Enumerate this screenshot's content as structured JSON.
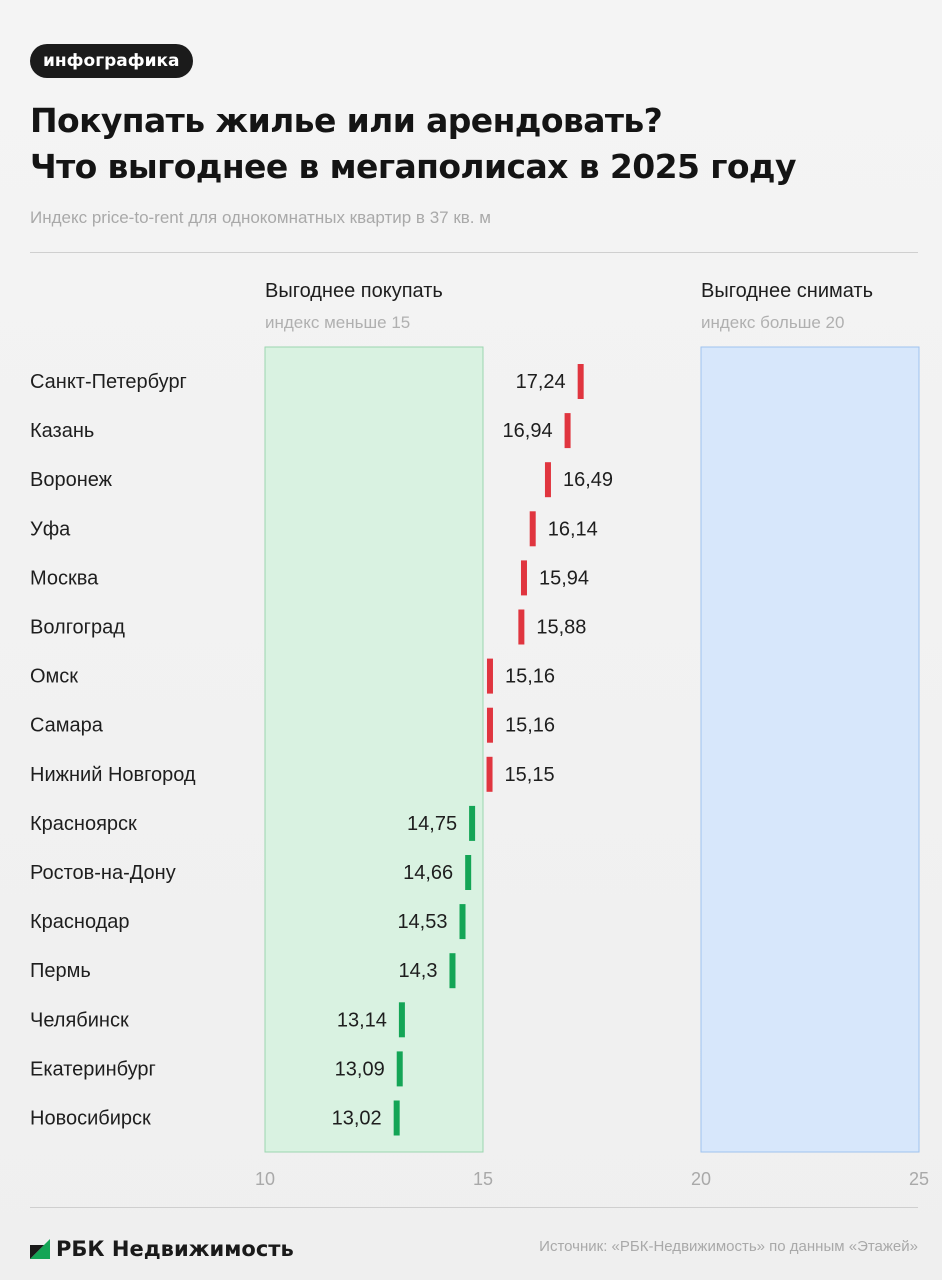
{
  "tag": "инфографика",
  "title_lines": [
    "Покупать жилье или арендовать?",
    "Что выгоднее в мегаполисах в 2025 году"
  ],
  "subtitle": "Индекс price-to-rent для однокомнатных квартир в 37 кв. м",
  "zones": {
    "buy": {
      "label": "Выгоднее покупать",
      "sub": "индекс меньше 15",
      "color": "#d9f2e1"
    },
    "rent": {
      "label": "Выгоднее снимать",
      "sub": "индекс больше 20",
      "color": "#d7e7fb"
    }
  },
  "colors": {
    "above15": "#e0353f",
    "below15": "#14a556"
  },
  "chart_data": {
    "type": "bar",
    "categories": [
      "Санкт-Петербург",
      "Казань",
      "Воронеж",
      "Уфа",
      "Москва",
      "Волгоград",
      "Омск",
      "Самара",
      "Нижний Новгород",
      "Красноярск",
      "Ростов-на-Дону",
      "Краснодар",
      "Пермь",
      "Челябинск",
      "Екатеринбург",
      "Новосибирск"
    ],
    "values": [
      17.24,
      16.94,
      16.49,
      16.14,
      15.94,
      15.88,
      15.16,
      15.16,
      15.15,
      14.75,
      14.66,
      14.53,
      14.3,
      13.14,
      13.09,
      13.02
    ],
    "labels": [
      "17,24",
      "16,94",
      "16,49",
      "16,14",
      "15,94",
      "15,88",
      "15,16",
      "15,16",
      "15,15",
      "14,75",
      "14,66",
      "14,53",
      "14,3",
      "13,14",
      "13,09",
      "13,02"
    ],
    "xlim": [
      10,
      25
    ],
    "xticks": [
      "10",
      "15",
      "20",
      "25"
    ],
    "zones": [
      [
        10,
        15
      ],
      [
        20,
        25
      ]
    ]
  },
  "footer": {
    "logo": "РБК Недвижимость",
    "source": "Источник: «РБК-Недвижимость» по данным «Этажей»"
  }
}
